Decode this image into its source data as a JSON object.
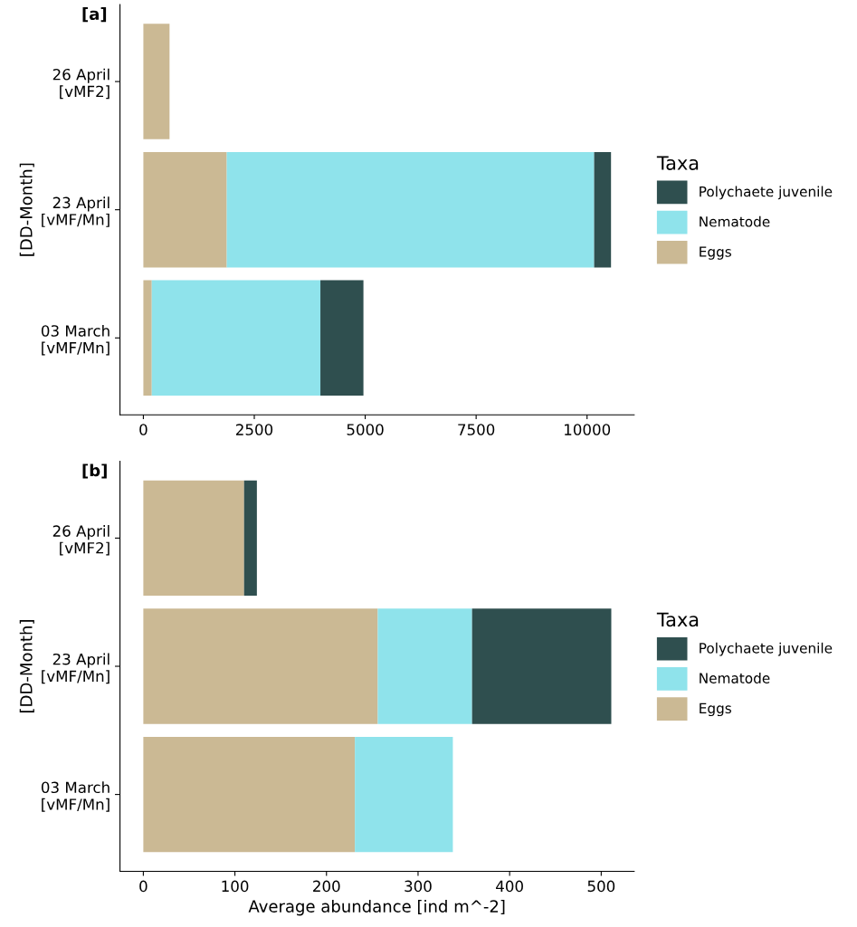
{
  "chart_data": [
    {
      "type": "bar",
      "title": "[a]",
      "orientation": "horizontal",
      "stacked": true,
      "ylabel": "[DD-Month]",
      "legend_title": "Taxa",
      "legend": "right",
      "grid": false,
      "categories": [
        "26 April\n[vMF2]",
        "23 April\n[vMF/Mn]",
        "03 March\n[vMF/Mn]"
      ],
      "xlim": [
        -527,
        11062
      ],
      "xticks": [
        0,
        2500,
        5000,
        7500,
        10000
      ],
      "series": [
        {
          "name": "Eggs",
          "color": "#cbb994",
          "values": [
            590,
            1880,
            190
          ]
        },
        {
          "name": "Nematode",
          "color": "#8fe3eb",
          "values": [
            0,
            8280,
            3800
          ]
        },
        {
          "name": "Polychaete juvenile",
          "color": "#2f4f4f",
          "values": [
            0,
            380,
            970
          ]
        }
      ]
    },
    {
      "type": "bar",
      "title": "[b]",
      "orientation": "horizontal",
      "stacked": true,
      "ylabel": "[DD-Month]",
      "xlabel": "Average abundance [ind m^-2]",
      "legend_title": "Taxa",
      "legend": "right",
      "grid": false,
      "categories": [
        "26 April\n[vMF2]",
        "23 April\n[vMF/Mn]",
        "03 March\n[vMF/Mn]"
      ],
      "xlim": [
        -25.5,
        536
      ],
      "xticks": [
        0,
        100,
        200,
        300,
        400,
        500
      ],
      "series": [
        {
          "name": "Eggs",
          "color": "#cbb994",
          "values": [
            110,
            256,
            231
          ]
        },
        {
          "name": "Nematode",
          "color": "#8fe3eb",
          "values": [
            0,
            103,
            107
          ]
        },
        {
          "name": "Polychaete juvenile",
          "color": "#2f4f4f",
          "values": [
            14,
            152,
            0
          ]
        }
      ]
    }
  ]
}
